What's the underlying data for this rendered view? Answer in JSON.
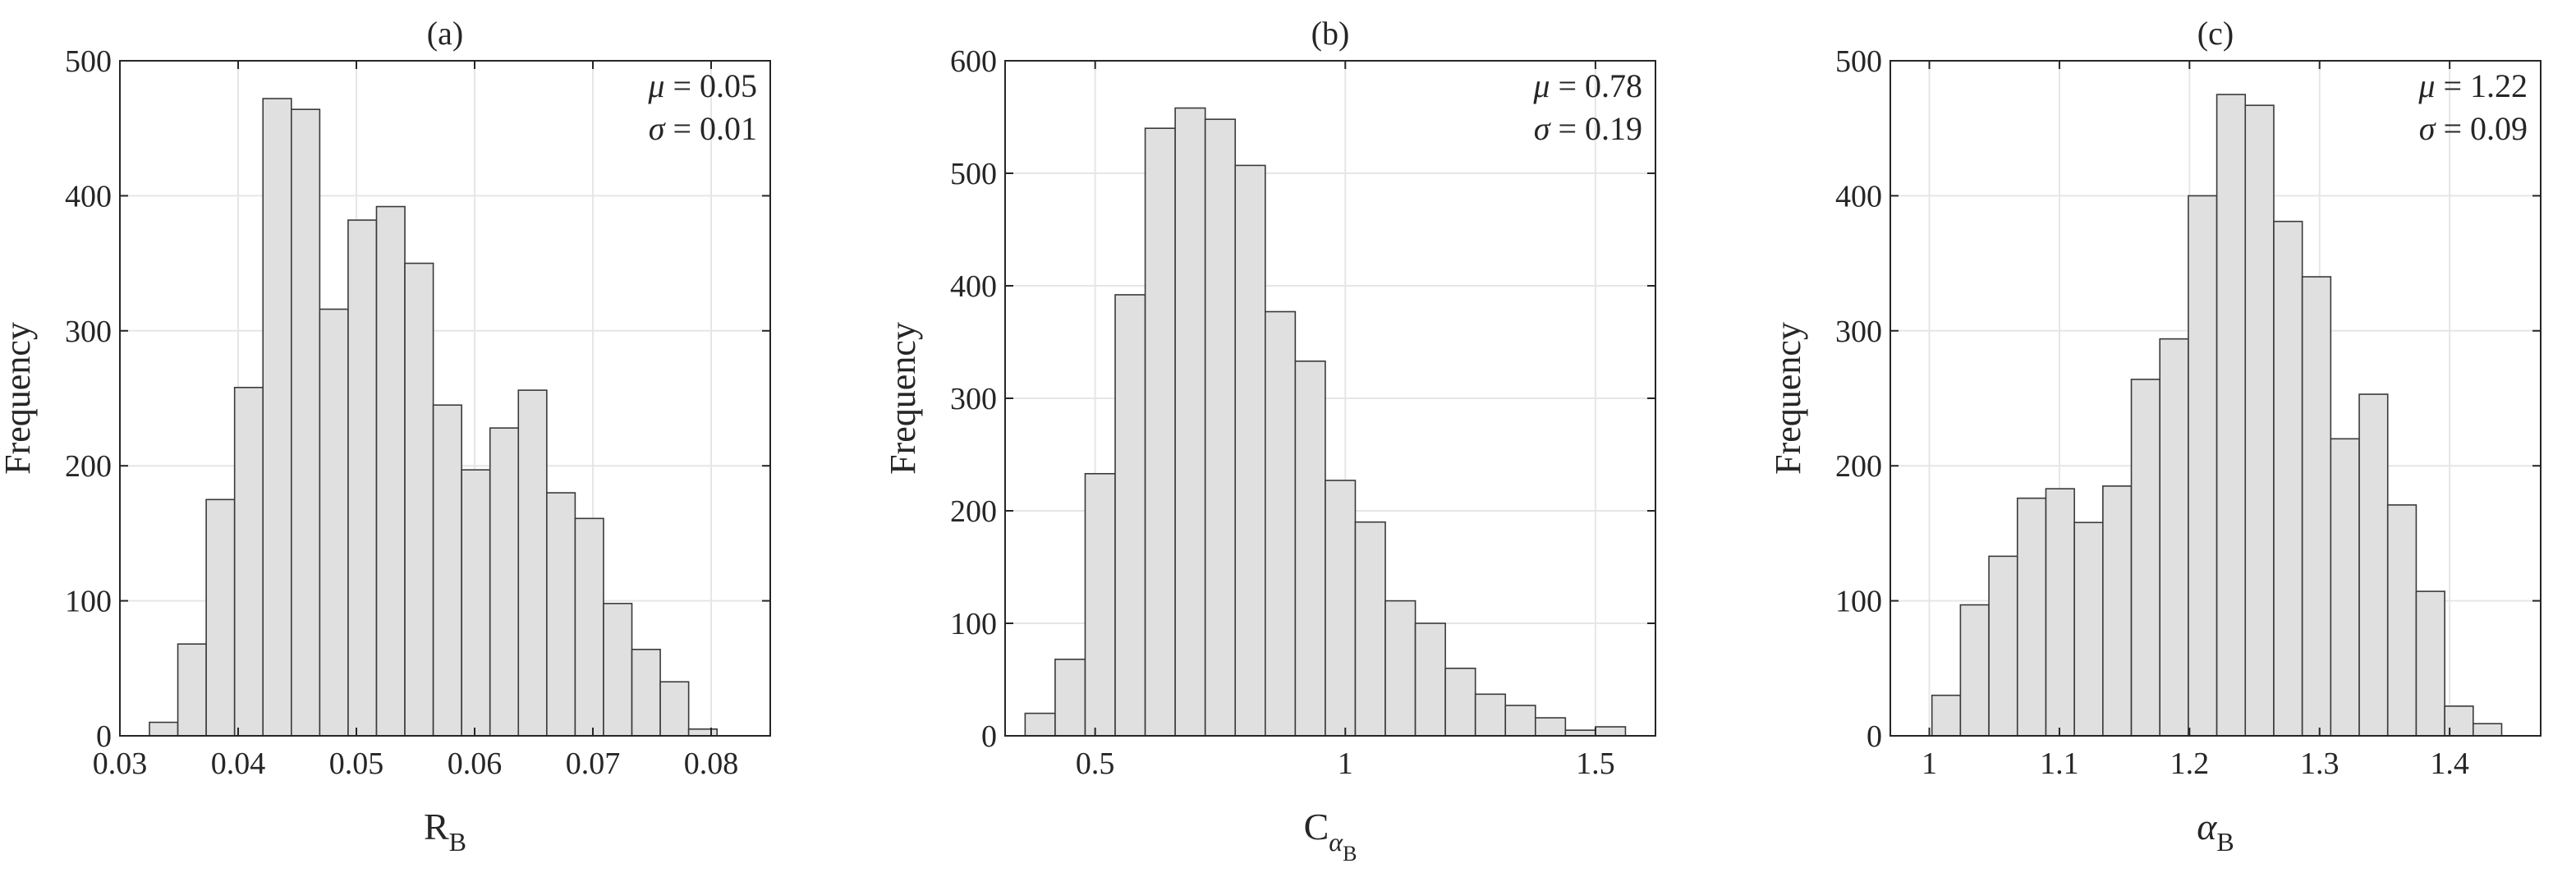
{
  "chart_data": [
    {
      "type": "bar",
      "title": "(a)",
      "xlabel": {
        "main": "R",
        "sub": "B",
        "greek_main": false,
        "sub_sub": ""
      },
      "ylabel": "Frequency",
      "stats": [
        {
          "symbol": "μ",
          "text": " = 0.05"
        },
        {
          "symbol": "σ",
          "text": " = 0.01"
        }
      ],
      "xlim": [
        0.03,
        0.085
      ],
      "ylim": [
        0,
        500
      ],
      "xticks": [
        0.03,
        0.04,
        0.05,
        0.06,
        0.07,
        0.08
      ],
      "xtick_labels": [
        "0.03",
        "0.04",
        "0.05",
        "0.06",
        "0.07",
        "0.08"
      ],
      "yticks": [
        0,
        100,
        200,
        300,
        400,
        500
      ],
      "ytick_labels": [
        "0",
        "100",
        "200",
        "300",
        "400",
        "500"
      ],
      "bin_start": 0.0325,
      "bin_width": 0.0024,
      "values": [
        10,
        68,
        175,
        258,
        472,
        464,
        316,
        382,
        392,
        350,
        245,
        197,
        228,
        256,
        180,
        161,
        98,
        64,
        40,
        5
      ],
      "grid": true,
      "color": "#e0e0e0"
    },
    {
      "type": "bar",
      "title": "(b)",
      "xlabel": {
        "main": "C",
        "sub": "α",
        "greek_main": false,
        "sub_sub": "B"
      },
      "ylabel": "Frequency",
      "stats": [
        {
          "symbol": "μ",
          "text": " = 0.78"
        },
        {
          "symbol": "σ",
          "text": " = 0.19"
        }
      ],
      "xlim": [
        0.32,
        1.62
      ],
      "ylim": [
        0,
        600
      ],
      "xticks": [
        0.5,
        1.0,
        1.5
      ],
      "xtick_labels": [
        "0.5",
        "1",
        "1.5"
      ],
      "yticks": [
        0,
        100,
        200,
        300,
        400,
        500,
        600
      ],
      "ytick_labels": [
        "0",
        "100",
        "200",
        "300",
        "400",
        "500",
        "600"
      ],
      "bin_start": 0.36,
      "bin_width": 0.06,
      "values": [
        20,
        68,
        233,
        392,
        540,
        558,
        548,
        507,
        377,
        333,
        227,
        190,
        120,
        100,
        60,
        37,
        27,
        16,
        5,
        8
      ],
      "grid": true,
      "color": "#e0e0e0"
    },
    {
      "type": "bar",
      "title": "(c)",
      "xlabel": {
        "main": "α",
        "sub": "B",
        "greek_main": true,
        "sub_sub": ""
      },
      "ylabel": "Frequency",
      "stats": [
        {
          "symbol": "μ",
          "text": " = 1.22"
        },
        {
          "symbol": "σ",
          "text": " = 0.09"
        }
      ],
      "xlim": [
        0.97,
        1.47
      ],
      "ylim": [
        0,
        500
      ],
      "xticks": [
        1.0,
        1.1,
        1.2,
        1.3,
        1.4
      ],
      "xtick_labels": [
        "1",
        "1.1",
        "1.2",
        "1.3",
        "1.4"
      ],
      "yticks": [
        0,
        100,
        200,
        300,
        400,
        500
      ],
      "ytick_labels": [
        "0",
        "100",
        "200",
        "300",
        "400",
        "500"
      ],
      "bin_start": 1.002,
      "bin_width": 0.0219,
      "values": [
        30,
        97,
        133,
        176,
        183,
        158,
        185,
        264,
        294,
        400,
        475,
        467,
        381,
        340,
        220,
        253,
        171,
        107,
        22,
        9
      ],
      "grid": true,
      "color": "#e0e0e0"
    }
  ]
}
